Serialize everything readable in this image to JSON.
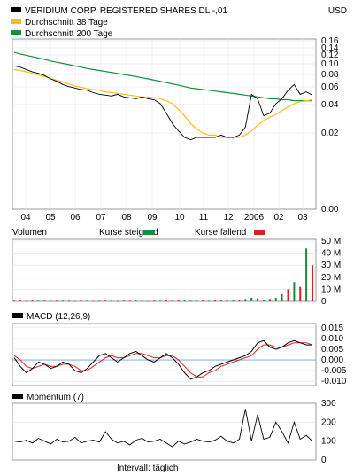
{
  "header": {
    "security": "VERIDIUM CORP. REGISTERED SHARES DL -,01",
    "currency": "USD",
    "legend": [
      {
        "label": "Durchschnitt 38 Tage",
        "color": "#f0c020"
      },
      {
        "label": "Durchschnitt 200 Tage",
        "color": "#109040"
      }
    ]
  },
  "chart_data": [
    {
      "type": "line",
      "title": "VERIDIUM CORP. REGISTERED SHARES DL -,01",
      "unit": "USD",
      "x_ticks": [
        "04",
        "05",
        "06",
        "07",
        "08",
        "09",
        "10",
        "11",
        "12",
        "2006",
        "02",
        "03"
      ],
      "y_ticks": [
        "0.16",
        "0.14",
        "0.12",
        "0.10",
        "0.08",
        "0.06",
        "0.04",
        "0.02",
        "0.00"
      ],
      "log_scale": true,
      "series": [
        {
          "name": "VERIDIUM CORP. REGISTERED SHARES DL -,01",
          "color": "#000000",
          "values": [
            0.098,
            0.095,
            0.09,
            0.085,
            0.082,
            0.078,
            0.072,
            0.068,
            0.063,
            0.06,
            0.058,
            0.056,
            0.055,
            0.052,
            0.05,
            0.049,
            0.048,
            0.05,
            0.047,
            0.046,
            0.045,
            0.047,
            0.045,
            0.044,
            0.04,
            0.032,
            0.025,
            0.021,
            0.018,
            0.017,
            0.018,
            0.018,
            0.018,
            0.018,
            0.019,
            0.018,
            0.018,
            0.019,
            0.023,
            0.05,
            0.045,
            0.03,
            0.032,
            0.04,
            0.045,
            0.055,
            0.063,
            0.05,
            0.053,
            0.049
          ]
        },
        {
          "name": "Durchschnitt 38 Tage",
          "color": "#f0c020",
          "values": [
            0.09,
            0.088,
            0.085,
            0.082,
            0.079,
            0.076,
            0.073,
            0.07,
            0.067,
            0.064,
            0.061,
            0.059,
            0.057,
            0.056,
            0.055,
            0.053,
            0.052,
            0.051,
            0.05,
            0.049,
            0.048,
            0.047,
            0.047,
            0.046,
            0.045,
            0.043,
            0.04,
            0.035,
            0.03,
            0.025,
            0.022,
            0.02,
            0.019,
            0.019,
            0.018,
            0.018,
            0.018,
            0.018,
            0.019,
            0.021,
            0.024,
            0.027,
            0.029,
            0.031,
            0.034,
            0.037,
            0.04,
            0.042,
            0.043,
            0.044
          ]
        },
        {
          "name": "Durchschnitt 200 Tage",
          "color": "#109040",
          "values": [
            0.135,
            0.13,
            0.126,
            0.122,
            0.118,
            0.114,
            0.11,
            0.107,
            0.104,
            0.101,
            0.098,
            0.095,
            0.092,
            0.09,
            0.088,
            0.086,
            0.084,
            0.082,
            0.08,
            0.078,
            0.076,
            0.074,
            0.072,
            0.07,
            0.068,
            0.066,
            0.064,
            0.062,
            0.06,
            0.058,
            0.057,
            0.056,
            0.055,
            0.054,
            0.053,
            0.052,
            0.051,
            0.05,
            0.049,
            0.048,
            0.047,
            0.046,
            0.045,
            0.045,
            0.044,
            0.044,
            0.043,
            0.043,
            0.043,
            0.043
          ]
        }
      ]
    },
    {
      "type": "bar",
      "title": "Volumen",
      "legend": [
        {
          "label": "Kurse steigend",
          "color": "#109040"
        },
        {
          "label": "Kurse fallend",
          "color": "#e02020"
        }
      ],
      "y_ticks": [
        "50 M",
        "40 M",
        "30 M",
        "20 M",
        "10 M",
        "0"
      ],
      "ylim": [
        0,
        50
      ],
      "values_millions": [
        0.5,
        0.6,
        0.4,
        0.7,
        0.5,
        0.6,
        0.4,
        0.5,
        0.6,
        0.5,
        0.4,
        0.6,
        0.5,
        0.4,
        0.5,
        0.6,
        0.5,
        0.4,
        0.6,
        0.5,
        0.6,
        0.5,
        0.4,
        0.6,
        0.5,
        0.7,
        0.6,
        0.8,
        0.7,
        0.6,
        0.5,
        0.6,
        0.5,
        0.7,
        0.6,
        0.8,
        0.9,
        1.5,
        2,
        3,
        2.5,
        1.5,
        2,
        3,
        6,
        10,
        16,
        12,
        44,
        30
      ],
      "rising": [
        true,
        false,
        true,
        false,
        true,
        false,
        true,
        false,
        true,
        false,
        true,
        false,
        true,
        false,
        true,
        false,
        true,
        false,
        true,
        false,
        true,
        false,
        true,
        false,
        true,
        false,
        true,
        false,
        true,
        false,
        true,
        false,
        true,
        false,
        true,
        false,
        true,
        false,
        true,
        true,
        false,
        true,
        false,
        true,
        true,
        false,
        true,
        false,
        true,
        false
      ]
    },
    {
      "type": "line",
      "title": "MACD (12,26,9)",
      "y_ticks": [
        "0.015",
        "0.010",
        "0.005",
        "0.000",
        "-0.005",
        "-0.010"
      ],
      "ylim": [
        -0.012,
        0.017
      ],
      "series": [
        {
          "name": "MACD",
          "color": "#000000",
          "values": [
            0.001,
            -0.003,
            -0.006,
            -0.004,
            -0.001,
            -0.002,
            -0.004,
            -0.003,
            -0.001,
            -0.002,
            -0.005,
            -0.006,
            -0.004,
            -0.001,
            0.002,
            0.003,
            0.001,
            -0.001,
            0.001,
            0.003,
            0.004,
            0.002,
            0.0,
            -0.001,
            0.001,
            0.003,
            0.001,
            -0.002,
            -0.006,
            -0.009,
            -0.008,
            -0.006,
            -0.005,
            -0.003,
            -0.002,
            -0.001,
            0.0,
            0.001,
            0.002,
            0.004,
            0.008,
            0.009,
            0.006,
            0.005,
            0.006,
            0.008,
            0.009,
            0.008,
            0.007,
            0.007
          ]
        },
        {
          "name": "Signal",
          "color": "#e02020",
          "values": [
            0.002,
            0.0,
            -0.003,
            -0.004,
            -0.003,
            -0.002,
            -0.003,
            -0.003,
            -0.002,
            -0.002,
            -0.003,
            -0.005,
            -0.005,
            -0.003,
            -0.001,
            0.001,
            0.002,
            0.001,
            0.001,
            0.002,
            0.003,
            0.003,
            0.002,
            0.001,
            0.001,
            0.002,
            0.002,
            0.0,
            -0.003,
            -0.006,
            -0.008,
            -0.008,
            -0.006,
            -0.005,
            -0.003,
            -0.002,
            -0.001,
            0.0,
            0.001,
            0.002,
            0.005,
            0.007,
            0.007,
            0.006,
            0.006,
            0.007,
            0.008,
            0.008,
            0.008,
            0.007
          ]
        }
      ]
    },
    {
      "type": "line",
      "title": "Momentum (7)",
      "y_ticks": [
        "300",
        "200",
        "100",
        "0"
      ],
      "ylim": [
        0,
        300
      ],
      "series": [
        {
          "name": "Momentum (7)",
          "color": "#000000",
          "values": [
            100,
            95,
            105,
            90,
            115,
            100,
            85,
            110,
            95,
            100,
            120,
            90,
            100,
            105,
            95,
            150,
            110,
            90,
            100,
            80,
            105,
            115,
            95,
            100,
            110,
            90,
            70,
            100,
            85,
            95,
            110,
            100,
            95,
            105,
            125,
            100,
            90,
            110,
            270,
            100,
            240,
            110,
            120,
            200,
            150,
            90,
            200,
            110,
            130,
            100
          ]
        }
      ]
    }
  ],
  "footer": {
    "interval": "Intervall: täglich"
  }
}
